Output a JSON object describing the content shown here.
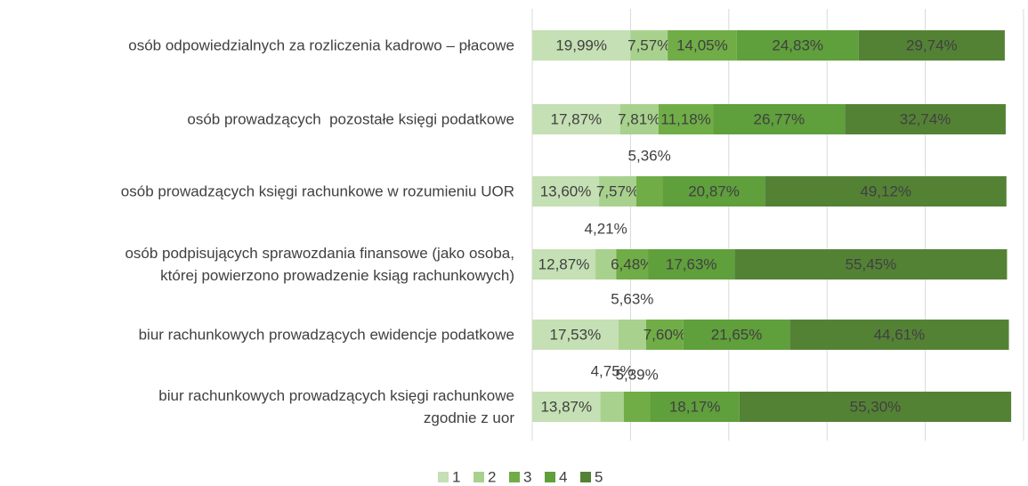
{
  "chart_data": {
    "type": "stacked-bar-horizontal",
    "categories": [
      "osób odpowiedzialnych za rozliczenia kadrowo – płacowe",
      "osób prowadzących  pozostałe księgi podatkowe",
      "osób prowadzących księgi rachunkowe w rozumieniu UOR",
      "osób podpisujących sprawozdania finansowe (jako osoba,\nktórej powierzono prowadzenie ksiąg rachunkowych)",
      "biur rachunkowych prowadzących ewidencje podatkowe",
      "biur rachunkowych prowadzących księgi rachunkowe\nzgodnie z uor"
    ],
    "series": [
      {
        "name": "1",
        "color": "#c5e0b4",
        "values": [
          19.99,
          17.87,
          13.6,
          12.87,
          17.53,
          13.87
        ],
        "value_labels": [
          "19,99%",
          "17,87%",
          "13,60%",
          "12,87%",
          "17,53%",
          "13,87%"
        ]
      },
      {
        "name": "2",
        "color": "#a9d18e",
        "values": [
          7.57,
          7.81,
          7.57,
          4.21,
          5.63,
          4.75
        ],
        "value_labels": [
          "7,57%",
          "7,81%",
          "7,57%",
          "4,21%",
          "5,63%",
          "4,75%"
        ]
      },
      {
        "name": "3",
        "color": "#70ad47",
        "values": [
          14.05,
          11.18,
          5.36,
          6.48,
          7.6,
          5.39
        ],
        "value_labels": [
          "14,05%",
          "11,18%",
          "5,36%",
          "6,48%",
          "7,60%",
          "5,39%"
        ]
      },
      {
        "name": "4",
        "color": "#5f9f3c",
        "values": [
          24.83,
          26.77,
          20.87,
          17.63,
          21.65,
          18.17
        ],
        "value_labels": [
          "24,83%",
          "26,77%",
          "20,87%",
          "17,63%",
          "21,65%",
          "18,17%"
        ]
      },
      {
        "name": "5",
        "color": "#548235",
        "values": [
          29.74,
          32.74,
          49.12,
          55.45,
          44.61,
          55.3
        ],
        "value_labels": [
          "29,74%",
          "32,74%",
          "49,12%",
          "55,45%",
          "44,61%",
          "55,30%"
        ]
      }
    ],
    "xlim": [
      0,
      100
    ],
    "xticks": [
      0,
      20,
      40,
      60,
      80,
      100
    ],
    "grid": true,
    "legend": "bottom"
  }
}
